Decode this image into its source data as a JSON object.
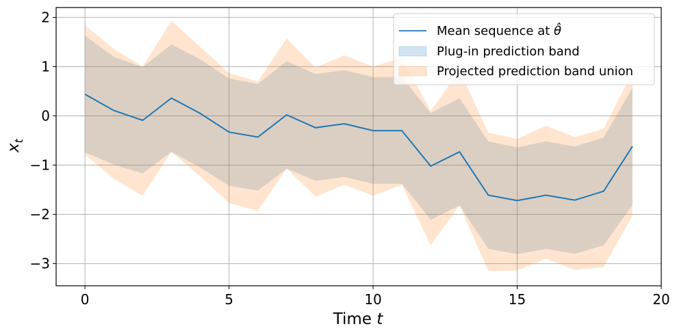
{
  "chart_data": {
    "type": "line",
    "xlabel": "Time t",
    "ylabel": "x_t",
    "xlim": [
      -1,
      20
    ],
    "ylim": [
      -3.45,
      2.2
    ],
    "xticks": [
      0,
      5,
      10,
      15,
      20
    ],
    "yticks": [
      2,
      1,
      0,
      -1,
      -2,
      -3
    ],
    "grid": true,
    "legend_placement": "top-right",
    "colors": {
      "mean": "#1f77b4",
      "plugin": "#1f77b4",
      "projected": "#ff7f0e"
    },
    "x": [
      0,
      1,
      2,
      3,
      4,
      5,
      6,
      7,
      8,
      9,
      10,
      11,
      12,
      13,
      14,
      15,
      16,
      17,
      18,
      19
    ],
    "series": [
      {
        "name": "Mean sequence at θ̂",
        "kind": "line",
        "values": [
          0.44,
          0.11,
          -0.09,
          0.36,
          0.05,
          -0.33,
          -0.43,
          0.02,
          -0.24,
          -0.16,
          -0.3,
          -0.3,
          -1.02,
          -0.73,
          -1.61,
          -1.72,
          -1.61,
          -1.71,
          -1.53,
          -0.62
        ]
      },
      {
        "name": "Plug-in prediction band",
        "kind": "band",
        "lower": [
          -0.74,
          -0.99,
          -1.17,
          -0.73,
          -1.05,
          -1.42,
          -1.52,
          -1.07,
          -1.32,
          -1.24,
          -1.38,
          -1.38,
          -2.11,
          -1.82,
          -2.7,
          -2.81,
          -2.7,
          -2.8,
          -2.63,
          -1.81
        ],
        "upper": [
          1.63,
          1.2,
          0.99,
          1.45,
          1.15,
          0.76,
          0.65,
          1.11,
          0.85,
          0.93,
          0.79,
          0.79,
          0.06,
          0.36,
          -0.52,
          -0.64,
          -0.52,
          -0.62,
          -0.44,
          0.57
        ]
      },
      {
        "name": "Projected prediction band union",
        "kind": "band",
        "lower": [
          -0.78,
          -1.28,
          -1.62,
          -0.73,
          -1.23,
          -1.77,
          -1.93,
          -1.07,
          -1.64,
          -1.4,
          -1.62,
          -1.4,
          -2.63,
          -1.82,
          -3.15,
          -3.14,
          -2.9,
          -3.13,
          -3.07,
          -2.03
        ],
        "upper": [
          1.84,
          1.36,
          1.0,
          1.93,
          1.4,
          0.87,
          0.7,
          1.57,
          0.98,
          1.23,
          1.0,
          1.18,
          0.1,
          0.92,
          -0.34,
          -0.47,
          -0.2,
          -0.43,
          -0.26,
          0.88
        ]
      }
    ]
  }
}
